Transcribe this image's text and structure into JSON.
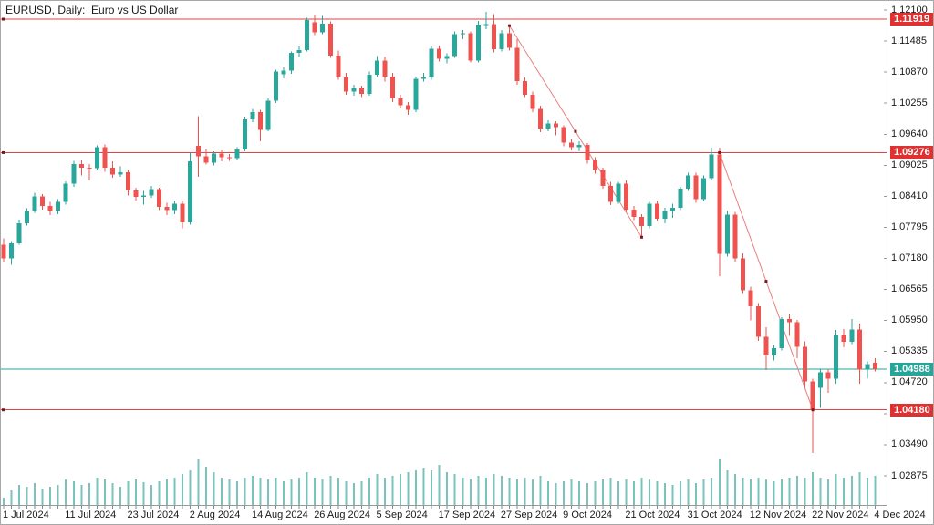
{
  "window": {
    "title": "EURUSD, Daily:  Euro vs US Dollar"
  },
  "chart_data": {
    "type": "candlestick",
    "symbol": "EURUSD",
    "timeframe": "Daily",
    "description": "Euro vs US Dollar",
    "current_price": "1.04988",
    "colors": {
      "bull": "#2aa79b",
      "bear": "#ef5350",
      "volume": "#79c3bc",
      "hline_red": "#e04545",
      "hline_teal": "#26a69a",
      "trendline": "#e88080",
      "anchor": "#7d1616",
      "axis": "#9a9a9a",
      "badge_red": "#e03030",
      "badge_teal": "#26a69a",
      "text": "#1a1a1a"
    },
    "y_axis": {
      "max": 1.121,
      "min": 1.02875,
      "ticks": [
        "1.12100",
        "1.11485",
        "1.10870",
        "1.10255",
        "1.09640",
        "1.09025",
        "1.08410",
        "1.07795",
        "1.07180",
        "1.06565",
        "1.05950",
        "1.05335",
        "1.04720",
        "1.04105",
        "1.03490",
        "1.02875"
      ]
    },
    "x_axis": {
      "step": 8,
      "labels": [
        "1 Jul 2024",
        "11 Jul 2024",
        "23 Jul 2024",
        "2 Aug 2024",
        "14 Aug 2024",
        "26 Aug 2024",
        "5 Sep 2024",
        "17 Sep 2024",
        "27 Sep 2024",
        "9 Oct 2024",
        "21 Oct 2024",
        "31 Oct 2024",
        "12 Nov 2024",
        "22 Nov 2024",
        "4 Dec 2024"
      ]
    },
    "horizontal_lines": [
      {
        "price": 1.11919,
        "label": "1.11919",
        "color": "#e04545",
        "badge_bg": "#e03030",
        "marker": true
      },
      {
        "price": 1.09276,
        "label": "1.09276",
        "color": "#e04545",
        "badge_bg": "#e03030",
        "marker": true
      },
      {
        "price": 1.04988,
        "label": "1.04988",
        "color": "#26a69a",
        "badge_bg": "#26a69a",
        "marker": false,
        "role": "current-price-line"
      },
      {
        "price": 1.0418,
        "label": "1.04180",
        "color": "#e04545",
        "badge_bg": "#e03030",
        "marker": true
      }
    ],
    "trendlines": [
      {
        "from_index": 65,
        "from_price": 1.1179,
        "to_index": 82,
        "to_price": 1.076
      },
      {
        "from_index": 92,
        "from_price": 1.09276,
        "to_index": 104,
        "to_price": 1.0418
      }
    ],
    "candle_format": [
      "date",
      "open",
      "high",
      "low",
      "close",
      "volume_px"
    ],
    "candles": [
      [
        "1 Jul 2024",
        1.0745,
        1.0758,
        1.071,
        1.0718,
        8
      ],
      [
        "2 Jul 2024",
        1.0718,
        1.0752,
        1.0705,
        1.0748,
        16
      ],
      [
        "3 Jul 2024",
        1.0748,
        1.0795,
        1.0745,
        1.0788,
        22
      ],
      [
        "4 Jul 2024",
        1.0788,
        1.0817,
        1.0783,
        1.0812,
        20
      ],
      [
        "5 Jul 2024",
        1.0812,
        1.0848,
        1.0808,
        1.0841,
        24
      ],
      [
        "8 Jul 2024",
        1.0841,
        1.0845,
        1.0815,
        1.0822,
        18
      ],
      [
        "9 Jul 2024",
        1.0822,
        1.083,
        1.0804,
        1.0812,
        20
      ],
      [
        "10 Jul 2024",
        1.0812,
        1.0835,
        1.0806,
        1.083,
        22
      ],
      [
        "11 Jul 2024",
        1.083,
        1.0871,
        1.0825,
        1.0866,
        28
      ],
      [
        "12 Jul 2024",
        1.0866,
        1.0911,
        1.086,
        1.0905,
        26
      ],
      [
        "15 Jul 2024",
        1.0905,
        1.0912,
        1.0882,
        1.0898,
        22
      ],
      [
        "16 Jul 2024",
        1.0898,
        1.0905,
        1.0872,
        1.0897,
        24
      ],
      [
        "17 Jul 2024",
        1.0897,
        1.0942,
        1.0893,
        1.0938,
        30
      ],
      [
        "18 Jul 2024",
        1.0938,
        1.0944,
        1.089,
        1.0898,
        28
      ],
      [
        "19 Jul 2024",
        1.0898,
        1.091,
        1.0878,
        1.0884,
        24
      ],
      [
        "22 Jul 2024",
        1.0884,
        1.09,
        1.088,
        1.0889,
        20
      ],
      [
        "23 Jul 2024",
        1.0889,
        1.0892,
        1.0843,
        1.0853,
        26
      ],
      [
        "24 Jul 2024",
        1.0853,
        1.0858,
        1.0833,
        1.084,
        28
      ],
      [
        "25 Jul 2024",
        1.084,
        1.0852,
        1.0825,
        1.0843,
        25
      ],
      [
        "26 Jul 2024",
        1.0843,
        1.0862,
        1.0838,
        1.0855,
        22
      ],
      [
        "29 Jul 2024",
        1.0855,
        1.0858,
        1.0814,
        1.082,
        26
      ],
      [
        "30 Jul 2024",
        1.082,
        1.0828,
        1.0804,
        1.0814,
        28
      ],
      [
        "31 Jul 2024",
        1.0814,
        1.0832,
        1.0806,
        1.0826,
        30
      ],
      [
        "1 Aug 2024",
        1.0826,
        1.0832,
        1.0778,
        1.0789,
        34
      ],
      [
        "2 Aug 2024",
        1.0789,
        1.0927,
        1.0785,
        1.091,
        38
      ],
      [
        "5 Aug 2024",
        1.0941,
        1.1,
        1.088,
        1.092,
        50
      ],
      [
        "6 Aug 2024",
        1.092,
        1.0935,
        1.0904,
        1.0908,
        42
      ],
      [
        "7 Aug 2024",
        1.0908,
        1.093,
        1.0902,
        1.0926,
        36
      ],
      [
        "8 Aug 2024",
        1.0926,
        1.0932,
        1.091,
        1.0918,
        30
      ],
      [
        "9 Aug 2024",
        1.0918,
        1.0925,
        1.0911,
        1.0917,
        28
      ],
      [
        "12 Aug 2024",
        1.0917,
        1.0938,
        1.0912,
        1.0934,
        26
      ],
      [
        "13 Aug 2024",
        1.0934,
        1.0999,
        1.093,
        1.0993,
        30
      ],
      [
        "14 Aug 2024",
        1.0993,
        1.1014,
        1.0988,
        1.1008,
        32
      ],
      [
        "15 Aug 2024",
        1.1008,
        1.1012,
        1.095,
        1.0973,
        30
      ],
      [
        "16 Aug 2024",
        1.0973,
        1.1035,
        1.097,
        1.103,
        28
      ],
      [
        "19 Aug 2024",
        1.103,
        1.1092,
        1.1026,
        1.1088,
        30
      ],
      [
        "20 Aug 2024",
        1.1083,
        1.1096,
        1.1075,
        1.109,
        26
      ],
      [
        "21 Aug 2024",
        1.109,
        1.1128,
        1.1084,
        1.1125,
        28
      ],
      [
        "22 Aug 2024",
        1.1125,
        1.1138,
        1.1118,
        1.1131,
        30
      ],
      [
        "23 Aug 2024",
        1.1131,
        1.1195,
        1.1128,
        1.119,
        36
      ],
      [
        "26 Aug 2024",
        1.1186,
        1.1201,
        1.116,
        1.1166,
        30
      ],
      [
        "27 Aug 2024",
        1.1166,
        1.1198,
        1.1162,
        1.1183,
        28
      ],
      [
        "28 Aug 2024",
        1.1183,
        1.1187,
        1.1115,
        1.112,
        32
      ],
      [
        "29 Aug 2024",
        1.112,
        1.113,
        1.1072,
        1.1078,
        30
      ],
      [
        "30 Aug 2024",
        1.1078,
        1.1085,
        1.1042,
        1.1048,
        26
      ],
      [
        "2 Sep 2024",
        1.1048,
        1.1062,
        1.104,
        1.1056,
        24
      ],
      [
        "3 Sep 2024",
        1.1056,
        1.106,
        1.1038,
        1.1044,
        26
      ],
      [
        "4 Sep 2024",
        1.1044,
        1.1088,
        1.104,
        1.1082,
        30
      ],
      [
        "5 Sep 2024",
        1.1082,
        1.1119,
        1.1078,
        1.111,
        34
      ],
      [
        "6 Sep 2024",
        1.111,
        1.1118,
        1.1068,
        1.1078,
        30
      ],
      [
        "9 Sep 2024",
        1.1078,
        1.1085,
        1.1028,
        1.1035,
        32
      ],
      [
        "10 Sep 2024",
        1.1035,
        1.1042,
        1.1015,
        1.1021,
        34
      ],
      [
        "11 Sep 2024",
        1.1021,
        1.1028,
        1.1002,
        1.1012,
        36
      ],
      [
        "12 Sep 2024",
        1.1012,
        1.1078,
        1.1008,
        1.1074,
        38
      ],
      [
        "13 Sep 2024",
        1.1074,
        1.1085,
        1.1068,
        1.1076,
        40
      ],
      [
        "16 Sep 2024",
        1.1076,
        1.1138,
        1.1072,
        1.1133,
        38
      ],
      [
        "17 Sep 2024",
        1.1133,
        1.114,
        1.1108,
        1.1113,
        44
      ],
      [
        "18 Sep 2024",
        1.1113,
        1.1124,
        1.1104,
        1.1119,
        36
      ],
      [
        "19 Sep 2024",
        1.1119,
        1.1168,
        1.1115,
        1.1162,
        34
      ],
      [
        "20 Sep 2024",
        1.1162,
        1.117,
        1.1152,
        1.1164,
        30
      ],
      [
        "23 Sep 2024",
        1.1164,
        1.1168,
        1.1106,
        1.111,
        28
      ],
      [
        "24 Sep 2024",
        1.111,
        1.1188,
        1.1106,
        1.1181,
        32
      ],
      [
        "25 Sep 2024",
        1.1181,
        1.1206,
        1.1172,
        1.1182,
        30
      ],
      [
        "26 Sep 2024",
        1.1182,
        1.1202,
        1.1126,
        1.1132,
        34
      ],
      [
        "27 Sep 2024",
        1.1132,
        1.117,
        1.1128,
        1.1164,
        32
      ],
      [
        "30 Sep 2024",
        1.1164,
        1.1179,
        1.113,
        1.1135,
        30
      ],
      [
        "1 Oct 2024",
        1.1135,
        1.1152,
        1.1062,
        1.1069,
        28
      ],
      [
        "2 Oct 2024",
        1.1069,
        1.1076,
        1.1038,
        1.1042,
        30
      ],
      [
        "3 Oct 2024",
        1.1042,
        1.1048,
        1.1008,
        1.1014,
        28
      ],
      [
        "4 Oct 2024",
        1.1014,
        1.102,
        1.0968,
        1.0975,
        32
      ],
      [
        "7 Oct 2024",
        1.0975,
        1.0992,
        1.097,
        1.0985,
        26
      ],
      [
        "8 Oct 2024",
        1.0985,
        1.099,
        1.0962,
        1.0978,
        24
      ],
      [
        "9 Oct 2024",
        1.0978,
        1.0982,
        1.094,
        1.0947,
        26
      ],
      [
        "10 Oct 2024",
        1.0947,
        1.0954,
        1.0932,
        1.0938,
        28
      ],
      [
        "11 Oct 2024",
        1.0938,
        1.095,
        1.093,
        1.0943,
        26
      ],
      [
        "14 Oct 2024",
        1.0943,
        1.0946,
        1.0906,
        1.0912,
        24
      ],
      [
        "15 Oct 2024",
        1.0912,
        1.0918,
        1.0886,
        1.0893,
        26
      ],
      [
        "16 Oct 2024",
        1.0893,
        1.0898,
        1.0856,
        1.0862,
        28
      ],
      [
        "17 Oct 2024",
        1.0862,
        1.087,
        1.0824,
        1.083,
        30
      ],
      [
        "18 Oct 2024",
        1.083,
        1.087,
        1.0826,
        1.0866,
        26
      ],
      [
        "21 Oct 2024",
        1.0866,
        1.0872,
        1.081,
        1.0815,
        28
      ],
      [
        "22 Oct 2024",
        1.0815,
        1.0822,
        1.0794,
        1.08,
        26
      ],
      [
        "23 Oct 2024",
        1.08,
        1.0806,
        1.0761,
        1.0782,
        30
      ],
      [
        "24 Oct 2024",
        1.0782,
        1.083,
        1.0778,
        1.0826,
        28
      ],
      [
        "25 Oct 2024",
        1.0826,
        1.0832,
        1.0792,
        1.0797,
        26
      ],
      [
        "28 Oct 2024",
        1.0797,
        1.0818,
        1.0788,
        1.0812,
        24
      ],
      [
        "29 Oct 2024",
        1.0812,
        1.0826,
        1.0798,
        1.0818,
        22
      ],
      [
        "30 Oct 2024",
        1.0818,
        1.086,
        1.0814,
        1.0856,
        26
      ],
      [
        "31 Oct 2024",
        1.0856,
        1.0888,
        1.0852,
        1.0882,
        28
      ],
      [
        "1 Nov 2024",
        1.0882,
        1.0888,
        1.0828,
        1.0835,
        24
      ],
      [
        "4 Nov 2024",
        1.0835,
        1.0882,
        1.0832,
        1.0877,
        28
      ],
      [
        "5 Nov 2024",
        1.0877,
        1.0937,
        1.0872,
        1.0924,
        30
      ],
      [
        "6 Nov 2024",
        1.0924,
        1.0937,
        1.0683,
        1.0727,
        50
      ],
      [
        "7 Nov 2024",
        1.0727,
        1.0812,
        1.0722,
        1.0805,
        38
      ],
      [
        "8 Nov 2024",
        1.0805,
        1.081,
        1.0712,
        1.0718,
        34
      ],
      [
        "11 Nov 2024",
        1.0718,
        1.0728,
        1.0648,
        1.0655,
        30
      ],
      [
        "12 Nov 2024",
        1.0655,
        1.0662,
        1.0595,
        1.0623,
        28
      ],
      [
        "13 Nov 2024",
        1.0623,
        1.063,
        1.0555,
        1.0563,
        30
      ],
      [
        "14 Nov 2024",
        1.0563,
        1.0582,
        1.0497,
        1.0526,
        28
      ],
      [
        "15 Nov 2024",
        1.0526,
        1.0546,
        1.0516,
        1.054,
        26
      ],
      [
        "18 Nov 2024",
        1.054,
        1.0602,
        1.0536,
        1.0598,
        28
      ],
      [
        "19 Nov 2024",
        1.0598,
        1.0608,
        1.0565,
        1.0592,
        30
      ],
      [
        "20 Nov 2024",
        1.0592,
        1.0596,
        1.052,
        1.0543,
        32
      ],
      [
        "21 Nov 2024",
        1.0543,
        1.0554,
        1.0462,
        1.0474,
        30
      ],
      [
        "22 Nov 2024",
        1.0474,
        1.048,
        1.0333,
        1.0418,
        36
      ],
      [
        "25 Nov 2024",
        1.0462,
        1.0498,
        1.0422,
        1.0492,
        30
      ],
      [
        "26 Nov 2024",
        1.0492,
        1.05,
        1.0452,
        1.048,
        28
      ],
      [
        "27 Nov 2024",
        1.048,
        1.0576,
        1.047,
        1.0566,
        34
      ],
      [
        "28 Nov 2024",
        1.0566,
        1.0578,
        1.0542,
        1.0553,
        30
      ],
      [
        "29 Nov 2024",
        1.0553,
        1.0598,
        1.0548,
        1.0577,
        32
      ],
      [
        "2 Dec 2024",
        1.0577,
        1.0589,
        1.047,
        1.0498,
        36
      ],
      [
        "3 Dec 2024",
        1.0498,
        1.0514,
        1.048,
        1.0509,
        30
      ],
      [
        "4 Dec 2024",
        1.0511,
        1.052,
        1.0494,
        1.0499,
        32
      ]
    ]
  }
}
